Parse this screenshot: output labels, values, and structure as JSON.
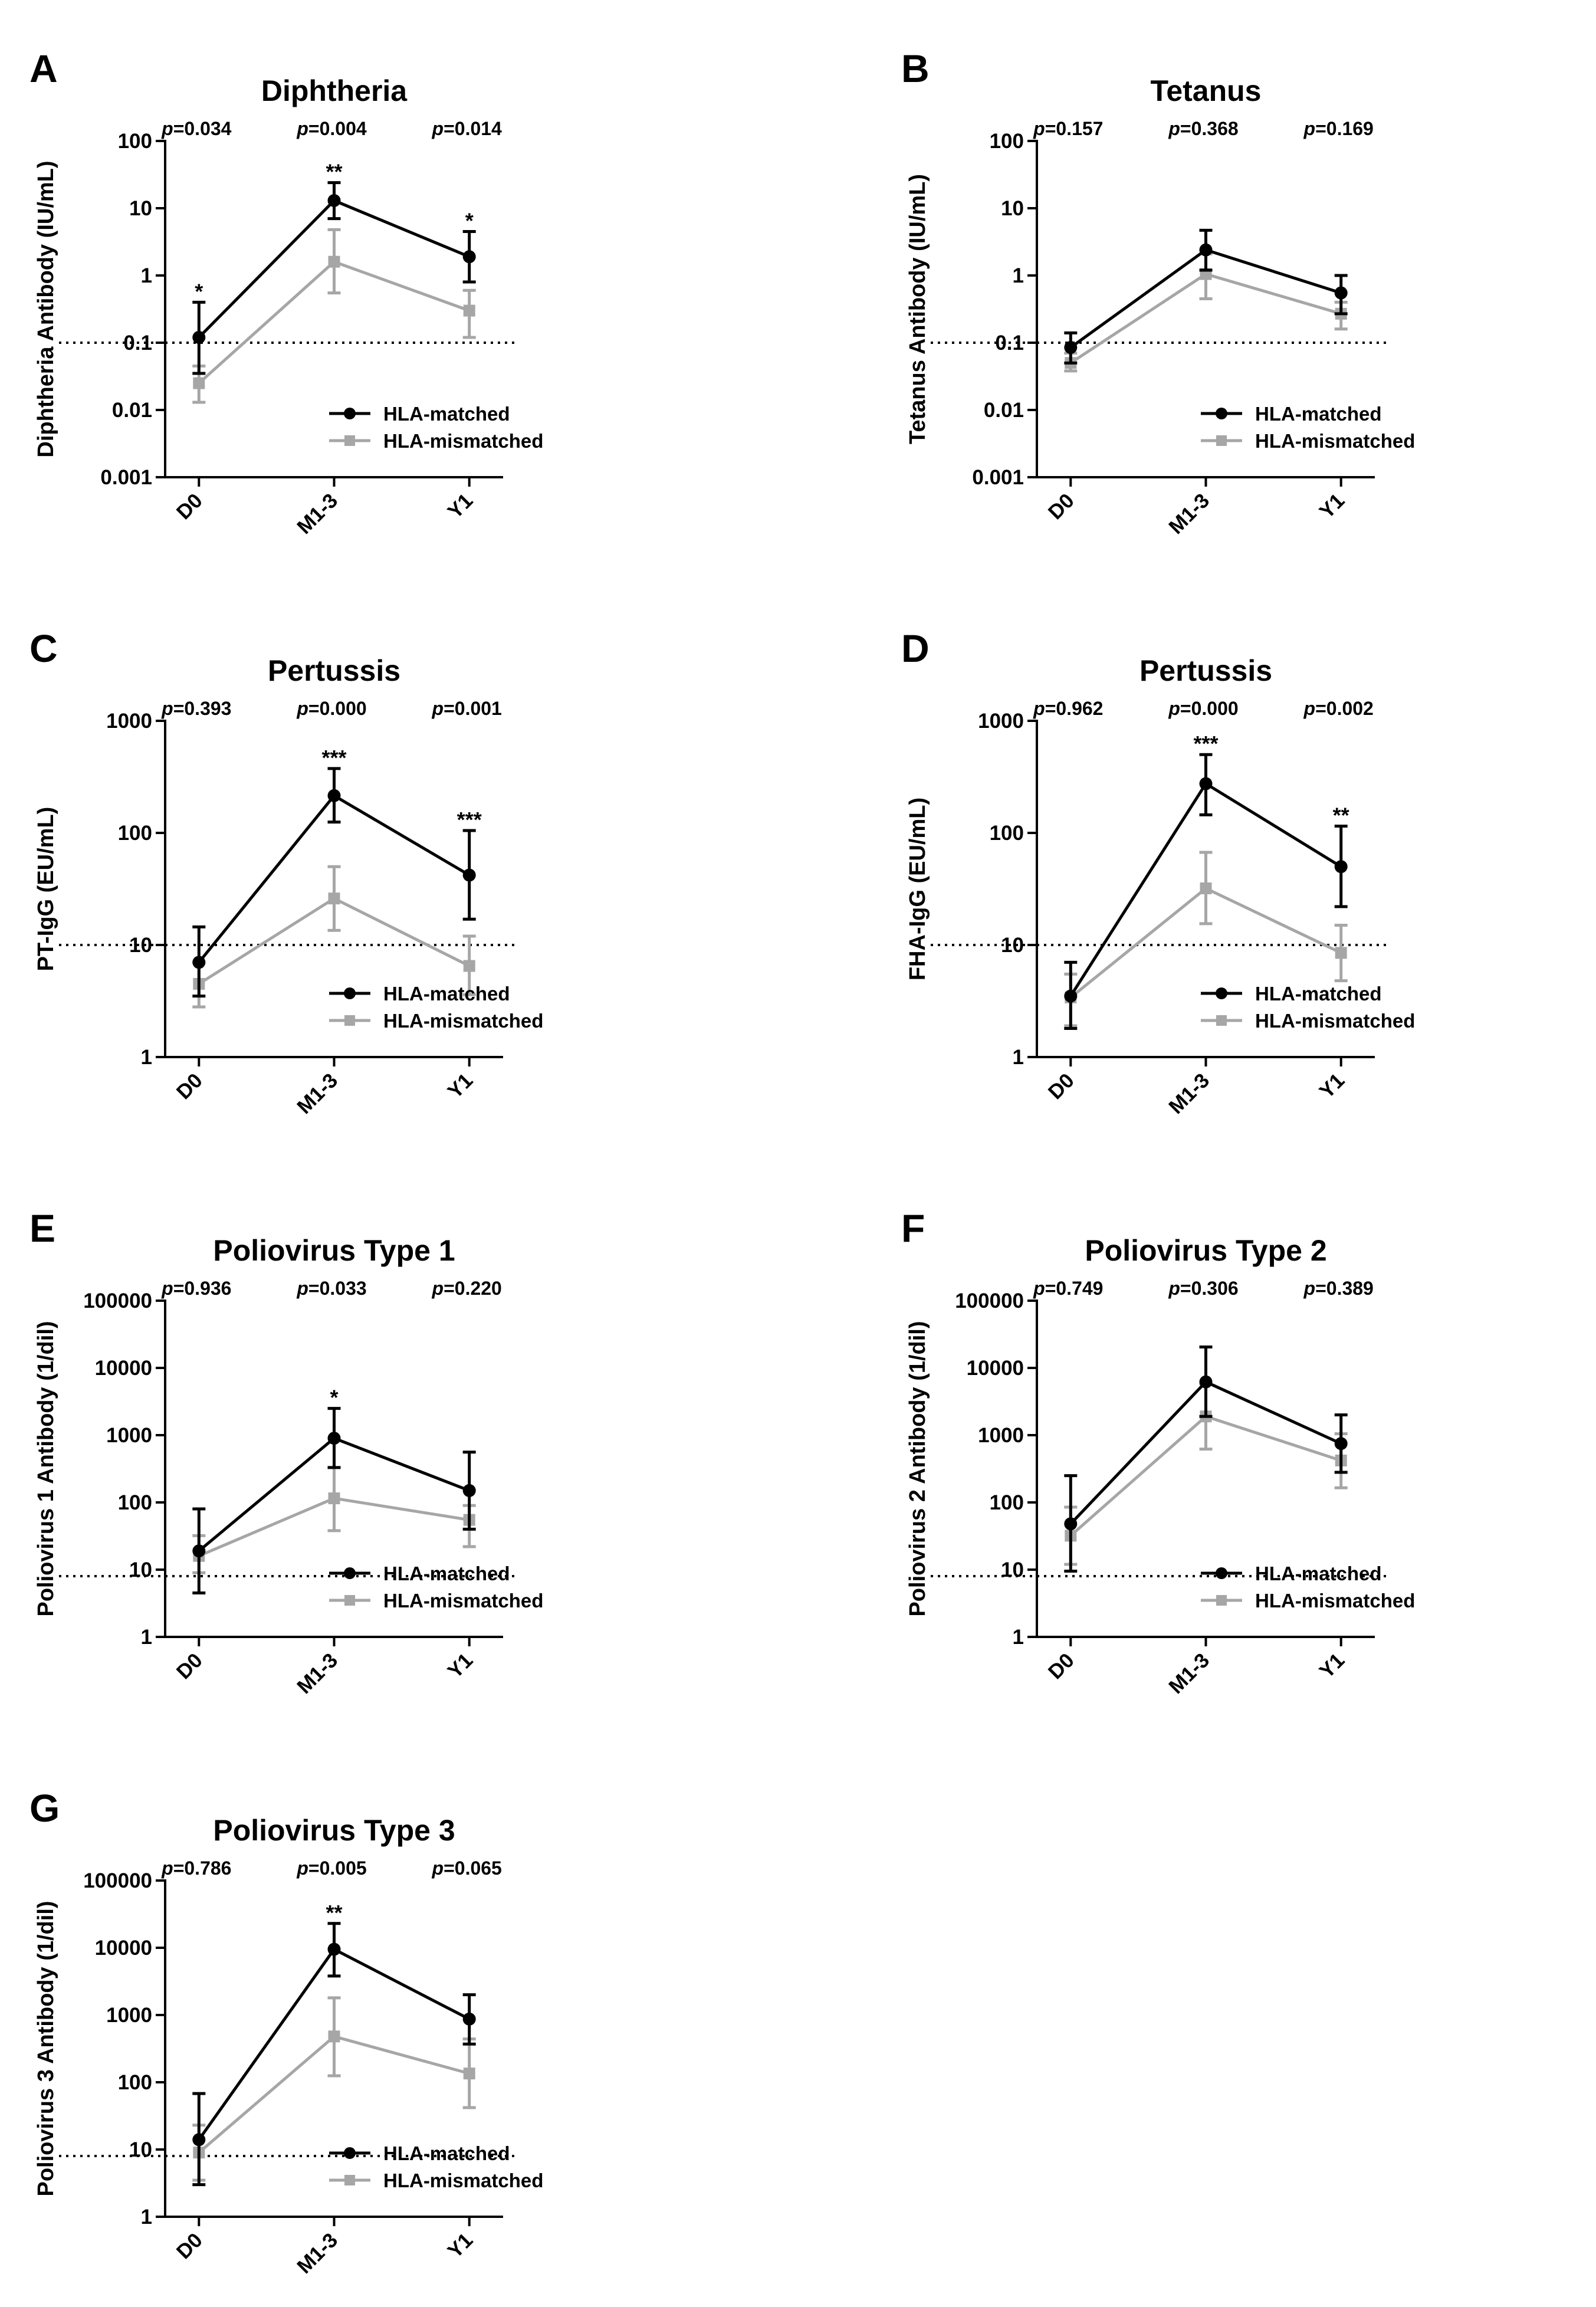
{
  "figure": {
    "colors": {
      "matched": "#000000",
      "mismatched": "#a6a6a6",
      "threshold": "#000000"
    },
    "legend": {
      "matched": "HLA-matched",
      "mismatched": "HLA-mismatched"
    },
    "p_prefix": "p",
    "categories": [
      "D0",
      "M1-3",
      "Y1"
    ]
  },
  "chart_data": [
    {
      "panel": "A",
      "title": "Diphtheria",
      "type": "line",
      "ylabel": "Diphtheria Antibody (IU/mL)",
      "yscale": "log",
      "ylim": [
        0.001,
        100
      ],
      "ytick_labels": [
        "0.001",
        "0.01",
        "0.1",
        "1",
        "10",
        "100"
      ],
      "threshold": 0.1,
      "categories": [
        "D0",
        "M1-3",
        "Y1"
      ],
      "p_values": [
        "=0.034",
        "=0.004",
        "=0.014"
      ],
      "significance": [
        "*",
        "**",
        "*"
      ],
      "series": [
        {
          "name": "HLA-matched",
          "values": [
            0.12,
            13,
            1.9
          ],
          "err_low": [
            0.035,
            7,
            0.8
          ],
          "err_high": [
            0.4,
            24,
            4.5
          ]
        },
        {
          "name": "HLA-mismatched",
          "values": [
            0.025,
            1.6,
            0.3
          ],
          "err_low": [
            0.013,
            0.55,
            0.12
          ],
          "err_high": [
            0.045,
            4.8,
            0.6
          ]
        }
      ]
    },
    {
      "panel": "B",
      "title": "Tetanus",
      "type": "line",
      "ylabel": "Tetanus Antibody (IU/mL)",
      "yscale": "log",
      "ylim": [
        0.001,
        100
      ],
      "ytick_labels": [
        "0.001",
        "0.01",
        "0.1",
        "1",
        "10",
        "100"
      ],
      "threshold": 0.1,
      "categories": [
        "D0",
        "M1-3",
        "Y1"
      ],
      "p_values": [
        "=0.157",
        "=0.368",
        "=0.169"
      ],
      "significance": [
        "",
        "",
        ""
      ],
      "series": [
        {
          "name": "HLA-matched",
          "values": [
            0.085,
            2.4,
            0.55
          ],
          "err_low": [
            0.05,
            1.2,
            0.27
          ],
          "err_high": [
            0.14,
            4.7,
            1.0
          ]
        },
        {
          "name": "HLA-mismatched",
          "values": [
            0.05,
            1.05,
            0.27
          ],
          "err_low": [
            0.038,
            0.45,
            0.16
          ],
          "err_high": [
            0.07,
            2.1,
            0.4
          ]
        }
      ]
    },
    {
      "panel": "C",
      "title": "Pertussis",
      "type": "line",
      "ylabel": "PT-IgG (EU/mL)",
      "yscale": "log",
      "ylim": [
        1,
        1000
      ],
      "ytick_labels": [
        "1",
        "10",
        "100",
        "1000"
      ],
      "threshold": 10,
      "categories": [
        "D0",
        "M1-3",
        "Y1"
      ],
      "p_values": [
        "=0.393",
        "=0.000",
        "=0.001"
      ],
      "significance": [
        "",
        "***",
        "***"
      ],
      "series": [
        {
          "name": "HLA-matched",
          "values": [
            7,
            215,
            42
          ],
          "err_low": [
            3.5,
            125,
            17
          ],
          "err_high": [
            14.5,
            375,
            105
          ]
        },
        {
          "name": "HLA-mismatched",
          "values": [
            4.5,
            26,
            6.5
          ],
          "err_low": [
            2.8,
            13.5,
            3.6
          ],
          "err_high": [
            7,
            50,
            12
          ]
        }
      ]
    },
    {
      "panel": "D",
      "title": "Pertussis",
      "type": "line",
      "ylabel": "FHA-IgG (EU/mL)",
      "yscale": "log",
      "ylim": [
        1,
        1000
      ],
      "ytick_labels": [
        "1",
        "10",
        "100",
        "1000"
      ],
      "threshold": 10,
      "categories": [
        "D0",
        "M1-3",
        "Y1"
      ],
      "p_values": [
        "=0.962",
        "=0.000",
        "=0.002"
      ],
      "significance": [
        "",
        "***",
        "**"
      ],
      "series": [
        {
          "name": "HLA-matched",
          "values": [
            3.5,
            275,
            50
          ],
          "err_low": [
            1.8,
            145,
            22
          ],
          "err_high": [
            7,
            500,
            115
          ]
        },
        {
          "name": "HLA-mismatched",
          "values": [
            3.4,
            32,
            8.5
          ],
          "err_low": [
            1.9,
            15.5,
            4.8
          ],
          "err_high": [
            5.5,
            67,
            15
          ]
        }
      ]
    },
    {
      "panel": "E",
      "title": "Poliovirus Type 1",
      "type": "line",
      "ylabel": "Poliovirus 1 Antibody (1/dil)",
      "yscale": "log",
      "ylim": [
        1,
        100000
      ],
      "ytick_labels": [
        "1",
        "10",
        "100",
        "1000",
        "10000",
        "100000"
      ],
      "threshold": 8,
      "categories": [
        "D0",
        "M1-3",
        "Y1"
      ],
      "p_values": [
        "=0.936",
        "=0.033",
        "=0.220"
      ],
      "significance": [
        "",
        "*",
        ""
      ],
      "series": [
        {
          "name": "HLA-matched",
          "values": [
            19,
            900,
            150
          ],
          "err_low": [
            4.5,
            330,
            40
          ],
          "err_high": [
            80,
            2500,
            560
          ]
        },
        {
          "name": "HLA-mismatched",
          "values": [
            16,
            115,
            55
          ],
          "err_low": [
            9,
            38,
            22
          ],
          "err_high": [
            32,
            330,
            90
          ]
        }
      ]
    },
    {
      "panel": "F",
      "title": "Poliovirus Type 2",
      "type": "line",
      "ylabel": "Poliovirus 2 Antibody (1/dil)",
      "yscale": "log",
      "ylim": [
        1,
        100000
      ],
      "ytick_labels": [
        "1",
        "10",
        "100",
        "1000",
        "10000",
        "100000"
      ],
      "threshold": 8,
      "categories": [
        "D0",
        "M1-3",
        "Y1"
      ],
      "p_values": [
        "=0.749",
        "=0.306",
        "=0.389"
      ],
      "significance": [
        "",
        "",
        ""
      ],
      "series": [
        {
          "name": "HLA-matched",
          "values": [
            48,
            6200,
            750
          ],
          "err_low": [
            9.5,
            1900,
            280
          ],
          "err_high": [
            250,
            20500,
            2000
          ]
        },
        {
          "name": "HLA-mismatched",
          "values": [
            32,
            1900,
            420
          ],
          "err_low": [
            12,
            620,
            165
          ],
          "err_high": [
            85,
            5800,
            1050
          ]
        }
      ]
    },
    {
      "panel": "G",
      "title": "Poliovirus Type 3",
      "type": "line",
      "ylabel": "Poliovirus 3 Antibody (1/dil)",
      "yscale": "log",
      "ylim": [
        1,
        100000
      ],
      "ytick_labels": [
        "1",
        "10",
        "100",
        "1000",
        "10000",
        "100000"
      ],
      "threshold": 8,
      "categories": [
        "D0",
        "M1-3",
        "Y1"
      ],
      "p_values": [
        "=0.786",
        "=0.005",
        "=0.065"
      ],
      "significance": [
        "",
        "**",
        ""
      ],
      "series": [
        {
          "name": "HLA-matched",
          "values": [
            14,
            9500,
            870
          ],
          "err_low": [
            3,
            3800,
            370
          ],
          "err_high": [
            68,
            23000,
            2000
          ]
        },
        {
          "name": "HLA-mismatched",
          "values": [
            9,
            480,
            135
          ],
          "err_low": [
            3.5,
            125,
            42
          ],
          "err_high": [
            23,
            1800,
            440
          ]
        }
      ]
    }
  ]
}
